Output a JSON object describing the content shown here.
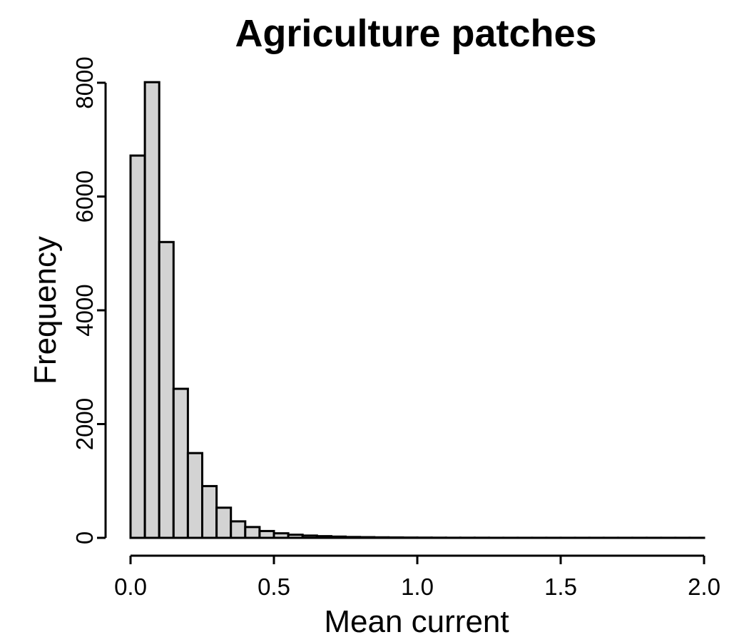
{
  "chart_data": {
    "type": "bar",
    "title": "Agriculture patches",
    "xlabel": "Mean current",
    "ylabel": "Frequency",
    "xlim": [
      0,
      2.0
    ],
    "ylim": [
      0,
      8000
    ],
    "xticks": [
      0.0,
      0.5,
      1.0,
      1.5,
      2.0
    ],
    "xtick_labels": [
      "0.0",
      "0.5",
      "1.0",
      "1.5",
      "2.0"
    ],
    "yticks": [
      0,
      2000,
      4000,
      6000,
      8000
    ],
    "ytick_labels": [
      "0",
      "2000",
      "4000",
      "6000",
      "8000"
    ],
    "bin_width": 0.05,
    "bin_start": 0.0,
    "values": [
      6720,
      8010,
      5200,
      2620,
      1490,
      910,
      530,
      290,
      190,
      120,
      80,
      55,
      40,
      30,
      22,
      15,
      12,
      9,
      7,
      5,
      4,
      3,
      2,
      2,
      2,
      1,
      1,
      1,
      1,
      1,
      1,
      1,
      1,
      1,
      1,
      1,
      1,
      1,
      1,
      1
    ],
    "grid": false,
    "legend": "none"
  }
}
